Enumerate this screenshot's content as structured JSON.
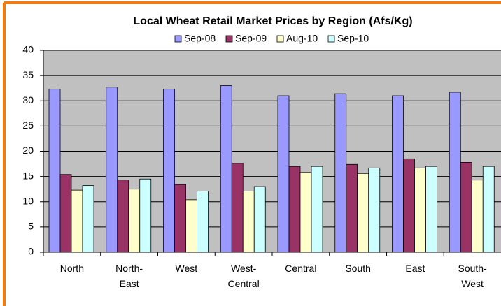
{
  "chart_data": {
    "type": "bar",
    "title": "Local Wheat Retail Market Prices by Region (Afs/Kg)",
    "categories": [
      "North",
      "North-\nEast",
      "West",
      "West-\nCentral",
      "Central",
      "South",
      "East",
      "South-\nWest"
    ],
    "series": [
      {
        "name": "Sep-08",
        "color": "#9999ff",
        "values": [
          32.3,
          32.7,
          32.3,
          33,
          31,
          31.4,
          31,
          31.7
        ]
      },
      {
        "name": "Sep-09",
        "color": "#993366",
        "values": [
          15.4,
          14.3,
          13.4,
          17.6,
          17,
          17.4,
          18.5,
          17.8
        ]
      },
      {
        "name": "Aug-10",
        "color": "#ffffcc",
        "values": [
          12.3,
          12.5,
          10.4,
          12.1,
          15.8,
          15.6,
          16.7,
          14.3
        ]
      },
      {
        "name": "Sep-10",
        "color": "#ccffff",
        "values": [
          13.2,
          14.5,
          12.1,
          13,
          17,
          16.7,
          17,
          17
        ]
      }
    ],
    "ylim": [
      0,
      40
    ],
    "yticks": [
      0,
      5,
      10,
      15,
      20,
      25,
      30,
      35,
      40
    ],
    "grid": true,
    "legend": "top"
  }
}
